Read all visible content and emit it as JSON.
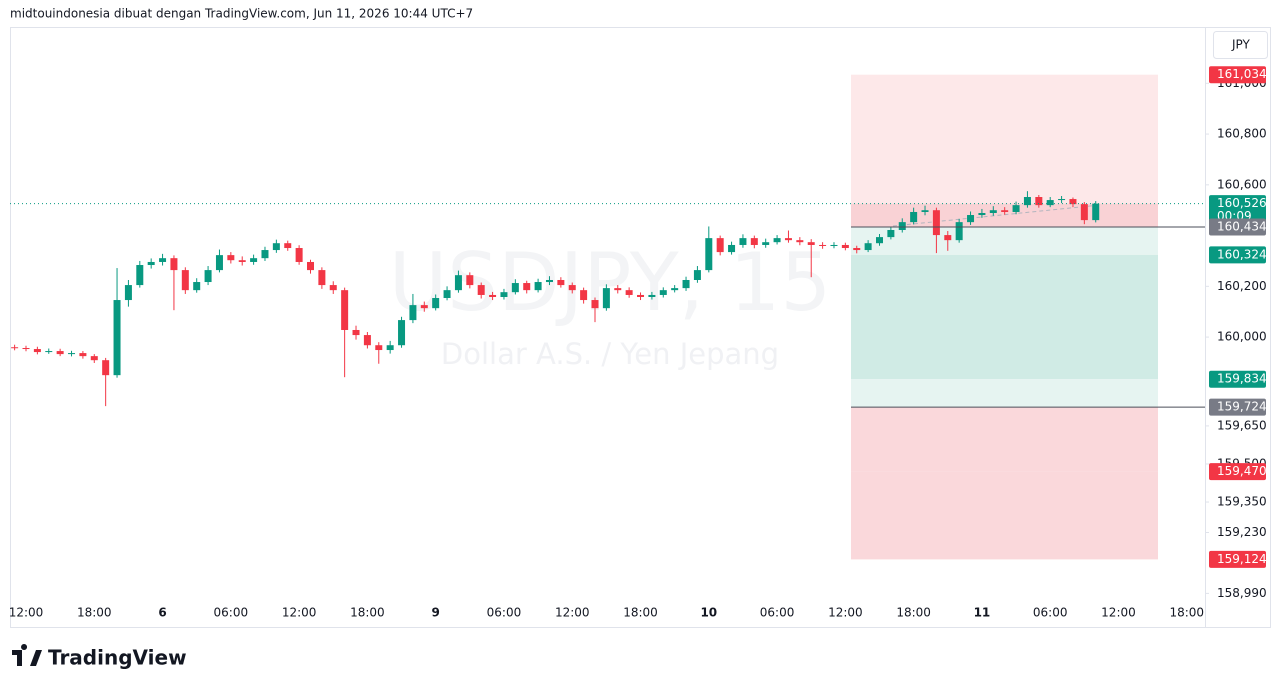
{
  "header": {
    "text": "midtouindonesia dibuat dengan TradingView.com, Jun 11, 2026 10:44 UTC+7"
  },
  "currency_button": "JPY",
  "footer": {
    "logo": "TradingView"
  },
  "chart_data": {
    "type": "candlestick",
    "title": "USDJPY, 15",
    "subtitle": "Dollar A.S. / Yen Jepang",
    "up_color": "#089981",
    "down_color": "#f23645",
    "grid": false,
    "categories": [
      null,
      "12:00",
      null,
      null,
      null,
      null,
      null,
      "18:00",
      null,
      null,
      null,
      null,
      null,
      "6",
      null,
      null,
      null,
      null,
      null,
      "06:00",
      null,
      null,
      null,
      null,
      null,
      "12:00",
      null,
      null,
      null,
      null,
      null,
      "18:00",
      null,
      null,
      null,
      null,
      null,
      "9",
      null,
      null,
      null,
      null,
      null,
      "06:00",
      null,
      null,
      null,
      null,
      null,
      "12:00",
      null,
      null,
      null,
      null,
      null,
      "18:00",
      null,
      null,
      null,
      null,
      null,
      "10",
      null,
      null,
      null,
      null,
      null,
      "06:00",
      null,
      null,
      null,
      null,
      null,
      "12:00",
      null,
      null,
      null,
      null,
      null,
      "18:00",
      null,
      null,
      null,
      null,
      null,
      "11",
      null,
      null,
      null,
      null,
      null,
      "06:00",
      null,
      null,
      null,
      null,
      null,
      "12:00",
      null,
      null,
      null,
      null,
      null,
      "18:00"
    ],
    "open": [
      159.96,
      159.957,
      159.953,
      159.941,
      159.945,
      159.933,
      159.937,
      159.925,
      159.909,
      159.85,
      160.146,
      160.205,
      160.284,
      160.296,
      160.311,
      160.264,
      160.185,
      160.217,
      160.264,
      160.323,
      160.303,
      160.296,
      160.311,
      160.343,
      160.37,
      160.351,
      160.296,
      160.264,
      160.205,
      160.185,
      160.028,
      160.008,
      159.968,
      159.949,
      159.968,
      160.067,
      160.126,
      160.114,
      160.154,
      160.185,
      160.244,
      160.205,
      160.166,
      160.158,
      160.177,
      160.213,
      160.185,
      160.217,
      160.225,
      160.205,
      160.185,
      160.146,
      160.114,
      160.193,
      160.185,
      160.166,
      160.158,
      160.166,
      160.185,
      160.193,
      160.225,
      160.264,
      160.39,
      160.335,
      160.363,
      160.39,
      160.363,
      160.374,
      160.39,
      160.382,
      160.374,
      160.363,
      160.359,
      160.363,
      160.351,
      160.343,
      160.37,
      160.394,
      160.422,
      160.453,
      160.493,
      160.5,
      160.402,
      160.382,
      160.453,
      160.481,
      160.489,
      160.5,
      160.493,
      160.52,
      160.552,
      160.52,
      160.54,
      160.544,
      160.524,
      160.461,
      null,
      null,
      null,
      null,
      null,
      null,
      null,
      null
    ],
    "high": [
      159.97,
      159.966,
      159.962,
      159.955,
      159.954,
      159.946,
      159.945,
      159.933,
      159.918,
      160.272,
      160.225,
      160.3,
      160.31,
      160.328,
      160.322,
      160.275,
      160.232,
      160.28,
      160.345,
      160.335,
      160.318,
      160.325,
      160.356,
      160.384,
      160.38,
      160.362,
      160.305,
      160.275,
      160.22,
      160.195,
      160.045,
      160.02,
      159.98,
      159.985,
      160.08,
      160.17,
      160.14,
      160.168,
      160.2,
      160.262,
      160.255,
      160.215,
      160.178,
      160.19,
      160.228,
      160.222,
      160.23,
      160.24,
      160.236,
      160.215,
      160.195,
      160.156,
      160.208,
      160.205,
      160.196,
      160.176,
      160.178,
      160.196,
      160.205,
      160.238,
      160.28,
      160.436,
      160.4,
      160.376,
      160.405,
      160.4,
      160.388,
      160.402,
      160.42,
      160.394,
      160.386,
      160.374,
      160.374,
      160.372,
      160.36,
      160.382,
      160.406,
      160.434,
      160.468,
      160.51,
      160.518,
      160.51,
      160.418,
      160.466,
      160.495,
      160.505,
      160.516,
      160.512,
      160.534,
      160.575,
      160.56,
      160.552,
      160.556,
      160.55,
      160.532,
      160.536,
      null,
      null,
      null,
      null,
      null,
      null,
      null,
      null
    ],
    "low": [
      159.948,
      159.944,
      159.932,
      159.934,
      159.925,
      159.924,
      159.915,
      159.898,
      159.728,
      159.84,
      160.12,
      160.195,
      160.27,
      160.282,
      160.106,
      160.17,
      160.175,
      160.205,
      160.255,
      160.29,
      160.282,
      160.285,
      160.3,
      160.332,
      160.34,
      160.285,
      160.25,
      160.19,
      160.17,
      159.842,
      159.99,
      159.955,
      159.895,
      159.935,
      159.958,
      160.055,
      160.1,
      160.105,
      160.145,
      160.175,
      160.192,
      160.152,
      160.146,
      160.148,
      160.168,
      160.172,
      160.176,
      160.205,
      160.195,
      160.172,
      160.132,
      160.059,
      160.104,
      160.172,
      160.155,
      160.146,
      160.148,
      160.156,
      160.176,
      160.182,
      160.214,
      160.255,
      160.322,
      160.325,
      160.352,
      160.35,
      160.352,
      160.365,
      160.372,
      160.362,
      160.236,
      160.348,
      160.35,
      160.342,
      160.33,
      160.335,
      160.36,
      160.385,
      160.412,
      160.444,
      160.48,
      160.331,
      160.34,
      160.372,
      160.442,
      160.47,
      160.478,
      160.482,
      160.484,
      160.51,
      160.51,
      160.512,
      160.528,
      160.512,
      160.445,
      160.452,
      null,
      null,
      null,
      null,
      null,
      null,
      null,
      null
    ],
    "close": [
      159.957,
      159.953,
      159.941,
      159.945,
      159.933,
      159.937,
      159.925,
      159.909,
      159.85,
      160.146,
      160.205,
      160.284,
      160.296,
      160.311,
      160.264,
      160.185,
      160.217,
      160.264,
      160.323,
      160.303,
      160.296,
      160.311,
      160.343,
      160.37,
      160.351,
      160.296,
      160.264,
      160.205,
      160.185,
      160.028,
      160.008,
      159.968,
      159.949,
      159.968,
      160.067,
      160.126,
      160.114,
      160.154,
      160.185,
      160.244,
      160.205,
      160.166,
      160.158,
      160.177,
      160.213,
      160.185,
      160.217,
      160.225,
      160.205,
      160.185,
      160.146,
      160.114,
      160.193,
      160.185,
      160.166,
      160.158,
      160.166,
      160.185,
      160.193,
      160.225,
      160.264,
      160.39,
      160.335,
      160.363,
      160.39,
      160.363,
      160.374,
      160.39,
      160.382,
      160.374,
      160.363,
      160.359,
      160.363,
      160.351,
      160.343,
      160.37,
      160.394,
      160.422,
      160.453,
      160.493,
      160.5,
      160.402,
      160.382,
      160.453,
      160.481,
      160.489,
      160.5,
      160.493,
      160.52,
      160.552,
      160.52,
      160.54,
      160.544,
      160.524,
      160.461,
      160.526,
      null,
      null,
      null,
      null,
      null,
      null,
      null,
      null
    ],
    "ylim": [
      158.964,
      161.218
    ],
    "yticks": [
      {
        "value": 161.0,
        "label": "161,000"
      },
      {
        "value": 160.8,
        "label": "160,800"
      },
      {
        "value": 160.6,
        "label": "160,600"
      },
      {
        "value": 160.2,
        "label": "160,200"
      },
      {
        "value": 160.0,
        "label": "160,000"
      },
      {
        "value": 159.65,
        "label": "159,650"
      },
      {
        "value": 159.5,
        "label": "159,500"
      },
      {
        "value": 159.35,
        "label": "159,350"
      },
      {
        "value": 159.23,
        "label": "159,230"
      },
      {
        "value": 158.99,
        "label": "158,990"
      }
    ],
    "price_labels": [
      {
        "value": 161.034,
        "label": "161,034",
        "color": "#f23645"
      },
      {
        "value": 160.526,
        "label": "160,526",
        "countdown": "00:09",
        "color": "#089981",
        "current": true
      },
      {
        "value": 160.434,
        "label": "160,434",
        "color": "#787b86",
        "line": true
      },
      {
        "value": 160.324,
        "label": "160,324",
        "color": "#089981"
      },
      {
        "value": 159.834,
        "label": "159,834",
        "color": "#089981"
      },
      {
        "value": 159.724,
        "label": "159,724",
        "color": "#787b86",
        "line": true
      },
      {
        "value": 159.47,
        "label": "159,470",
        "color": "#f23645"
      },
      {
        "value": 159.124,
        "label": "159,124",
        "color": "#f23645"
      }
    ],
    "zone_colors": [
      "#fde8e9",
      "#f9d2d5",
      "#e6f4f1",
      "#d0ebe5",
      "#e6f4f1",
      "#fad8db",
      "#fad8db"
    ]
  }
}
